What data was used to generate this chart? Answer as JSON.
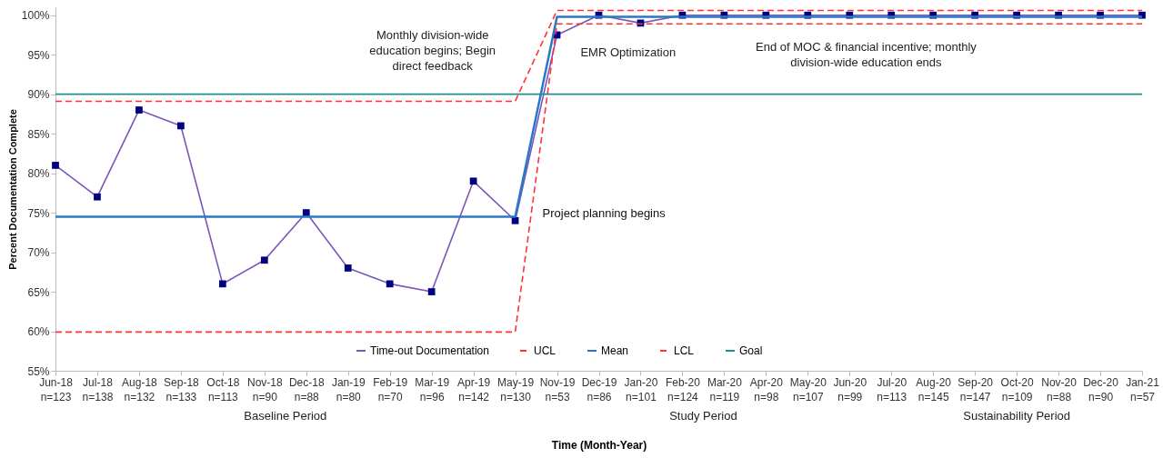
{
  "chart_data": {
    "type": "line",
    "ylabel": "Percent Documentation Complete",
    "xlabel": "Time (Month-Year)",
    "categories": [
      "Jun-18\nn=123",
      "Jul-18\nn=138",
      "Aug-18\nn=132",
      "Sep-18\nn=133",
      "Oct-18\nn=113",
      "Nov-18\nn=90",
      "Dec-18\nn=88",
      "Jan-19\nn=80",
      "Feb-19\nn=70",
      "Mar-19\nn=96",
      "Apr-19\nn=142",
      "May-19\nn=130",
      "Nov-19\nn=53",
      "Dec-19\nn=86",
      "Jan-20\nn=101",
      "Feb-20\nn=124",
      "Mar-20\nn=119",
      "Apr-20\nn=98",
      "May-20\nn=107",
      "Jun-20\nn=99",
      "Jul-20\nn=113",
      "Aug-20\nn=145",
      "Sep-20\nn=147",
      "Oct-20\nn=109",
      "Nov-20\nn=88",
      "Dec-20\nn=90",
      "Jan-21\nn=57"
    ],
    "series": [
      {
        "name": "Time-out Documentation",
        "color": "#7b55b8",
        "marker": "square",
        "line_style": "solid",
        "values": [
          81,
          77,
          88,
          86,
          66,
          69,
          75,
          68,
          66,
          65,
          79,
          74,
          97.5,
          100,
          99,
          100,
          100,
          100,
          100,
          100,
          100,
          100,
          100,
          100,
          100,
          100,
          100
        ]
      },
      {
        "name": "UCL",
        "color": "#ff3333",
        "marker": "none",
        "line_style": "dashed",
        "values": [
          89.1,
          89.1,
          89.1,
          89.1,
          89.1,
          89.1,
          89.1,
          89.1,
          89.1,
          89.1,
          89.1,
          89.1,
          100.6,
          100.6,
          100.6,
          100.6,
          100.6,
          100.6,
          100.6,
          100.6,
          100.6,
          100.6,
          100.6,
          100.6,
          100.6,
          100.6,
          100.6
        ]
      },
      {
        "name": "Mean",
        "color": "#2878c8",
        "marker": "none",
        "line_style": "solid",
        "values": [
          74.5,
          74.5,
          74.5,
          74.5,
          74.5,
          74.5,
          74.5,
          74.5,
          74.5,
          74.5,
          74.5,
          74.5,
          99.8,
          99.8,
          99.8,
          99.8,
          99.8,
          99.8,
          99.8,
          99.8,
          99.8,
          99.8,
          99.8,
          99.8,
          99.8,
          99.8,
          99.8
        ]
      },
      {
        "name": "LCL",
        "color": "#ff3333",
        "marker": "none",
        "line_style": "dashed",
        "values": [
          59.9,
          59.9,
          59.9,
          59.9,
          59.9,
          59.9,
          59.9,
          59.9,
          59.9,
          59.9,
          59.9,
          59.9,
          98.9,
          98.9,
          98.9,
          98.9,
          98.9,
          98.9,
          98.9,
          98.9,
          98.9,
          98.9,
          98.9,
          98.9,
          98.9,
          98.9,
          98.9
        ]
      },
      {
        "name": "Goal",
        "color": "#1f8f8a",
        "marker": "none",
        "line_style": "solid",
        "values": [
          90,
          90,
          90,
          90,
          90,
          90,
          90,
          90,
          90,
          90,
          90,
          90,
          90,
          90,
          90,
          90,
          90,
          90,
          90,
          90,
          90,
          90,
          90,
          90,
          90,
          90,
          90
        ]
      }
    ],
    "ylim": [
      55,
      101
    ],
    "yticks": [
      {
        "value": 55,
        "label": "55%"
      },
      {
        "value": 60,
        "label": "60%"
      },
      {
        "value": 65,
        "label": "65%"
      },
      {
        "value": 70,
        "label": "70%"
      },
      {
        "value": 75,
        "label": "75%"
      },
      {
        "value": 80,
        "label": "80%"
      },
      {
        "value": 85,
        "label": "85%"
      },
      {
        "value": 90,
        "label": "90%"
      },
      {
        "value": 95,
        "label": "95%"
      },
      {
        "value": 100,
        "label": "100%"
      }
    ],
    "annotations": [
      "Monthly division-wide education begins; Begin direct feedback",
      "EMR Optimization",
      "End of MOC & financial incentive; monthly division-wide education ends",
      {
        "text": "Project planning begins",
        "x": "May-19\nn=130",
        "y": 74
      },
      "Baseline Period",
      "Study Period",
      "Sustainability Period"
    ],
    "grid": false,
    "legend": "bottom"
  }
}
